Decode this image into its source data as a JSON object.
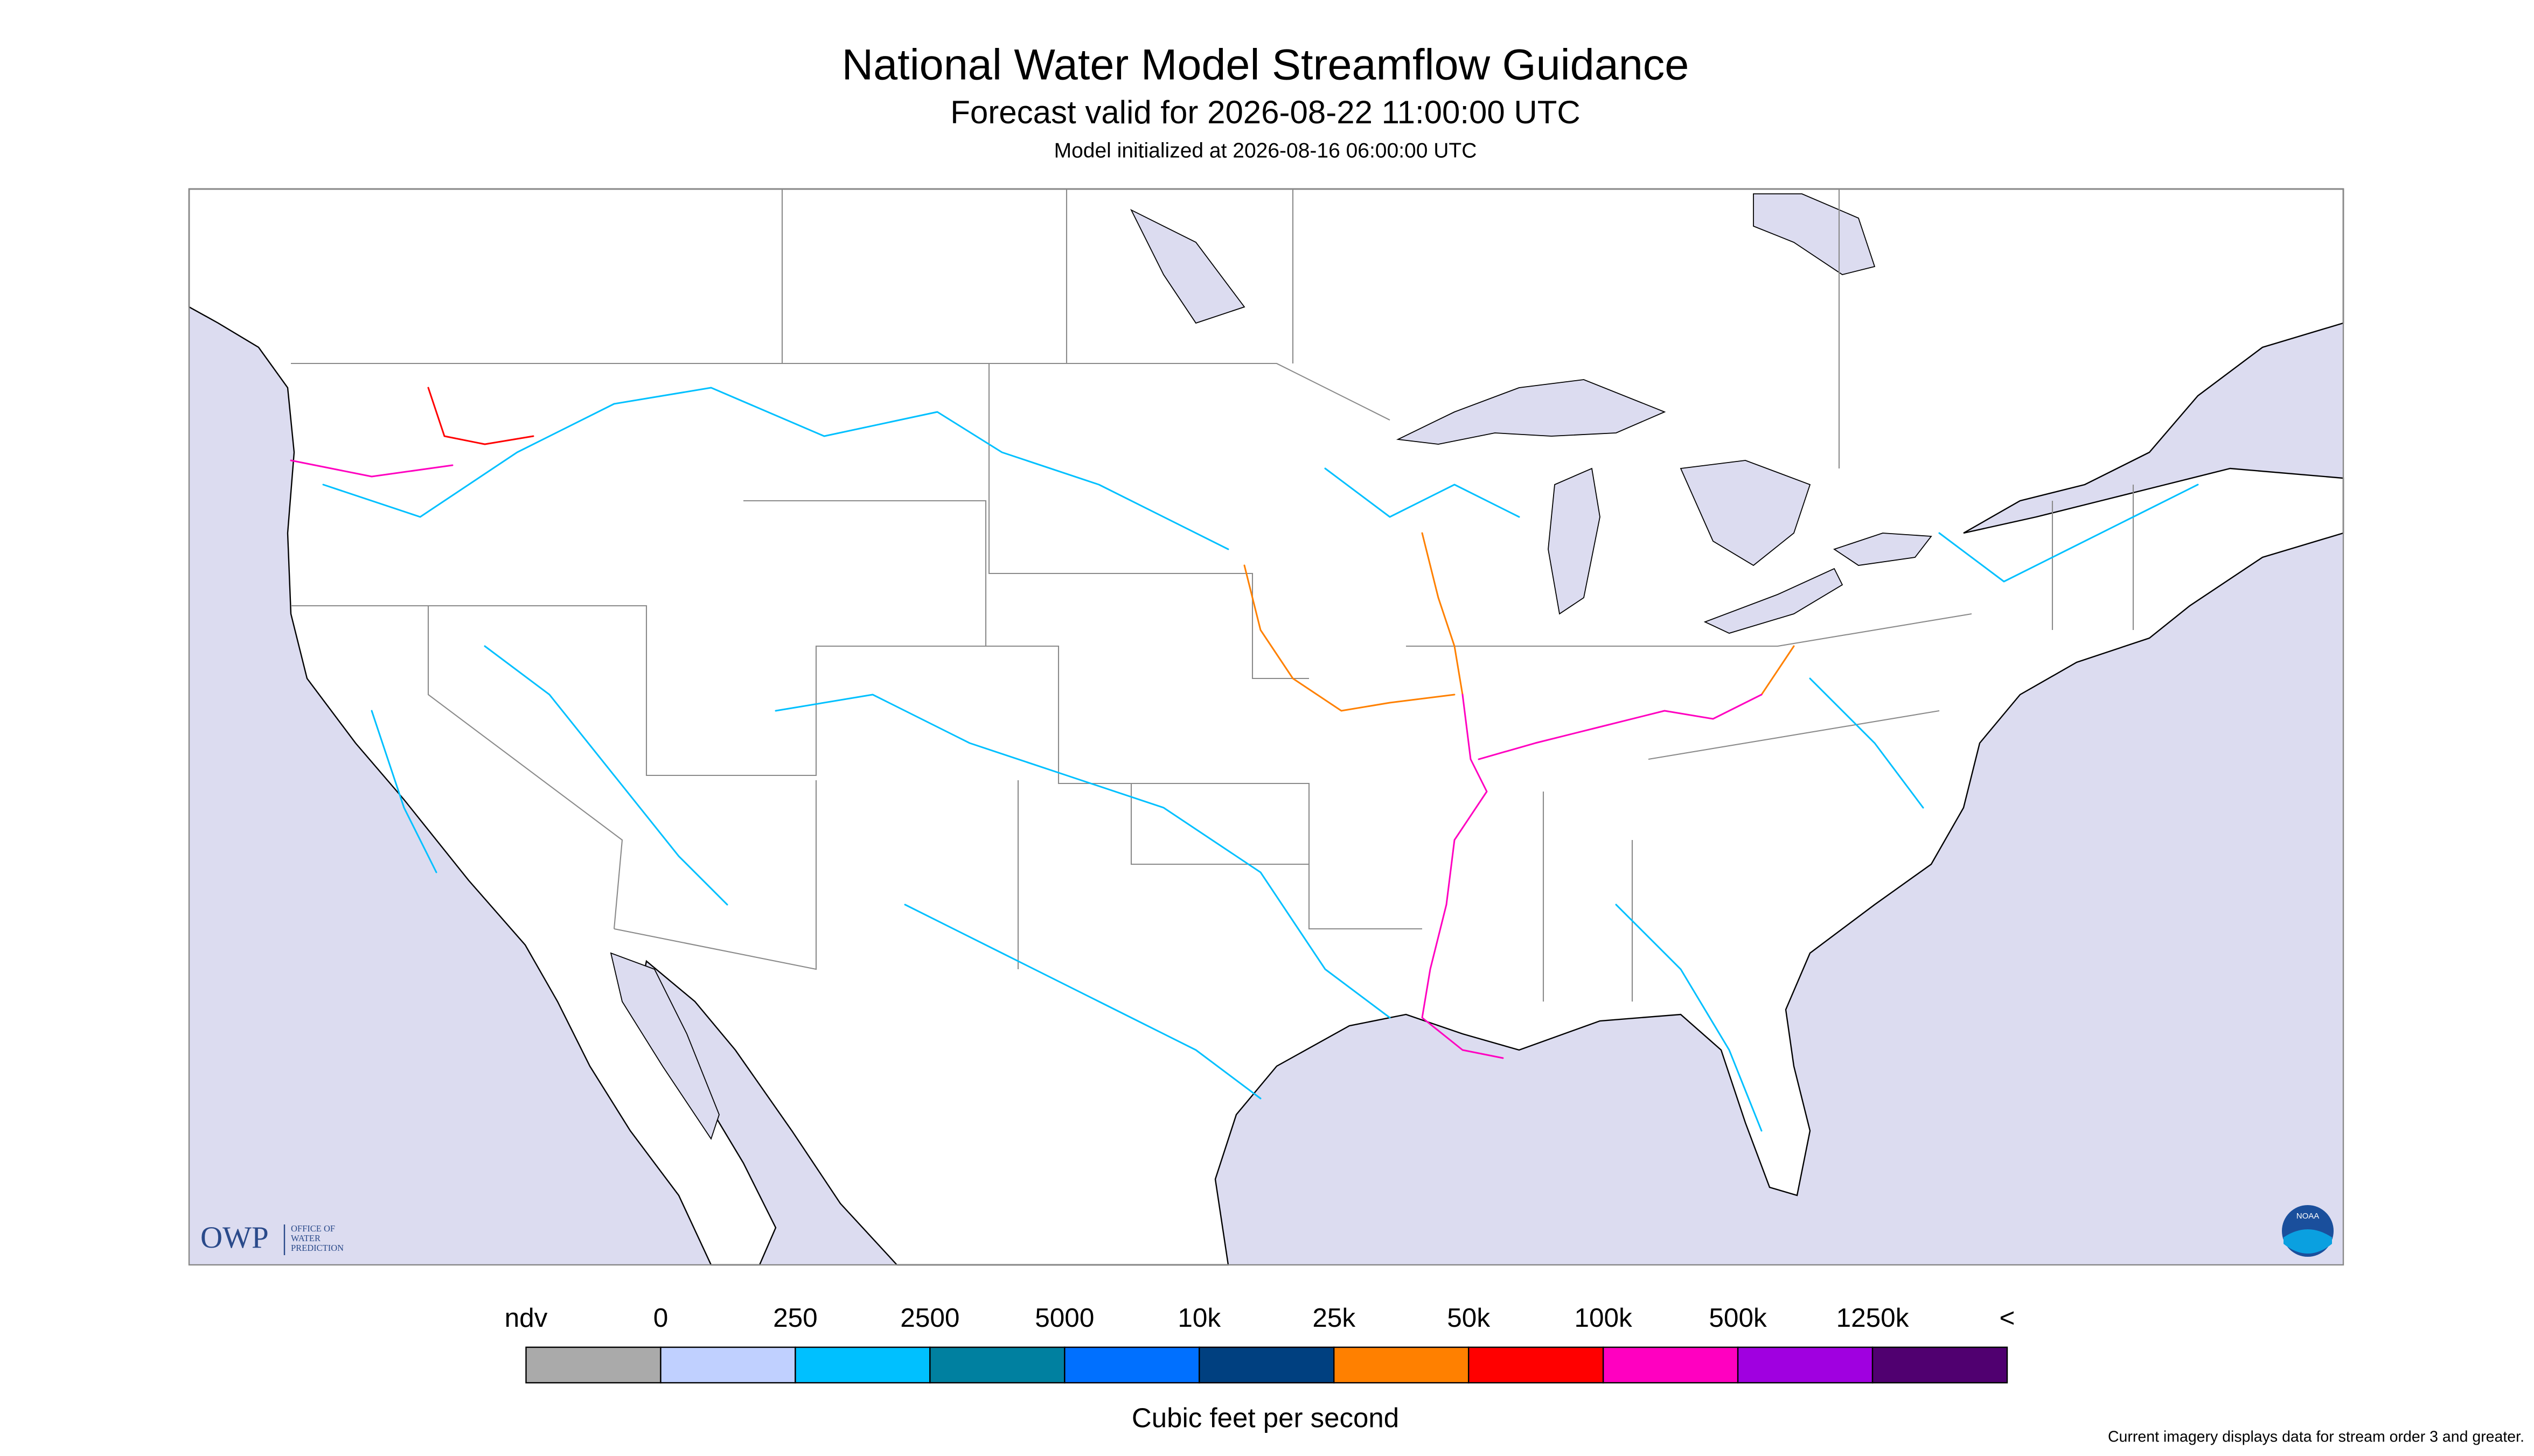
{
  "header": {
    "title": "National Water Model Streamflow Guidance",
    "subtitle": "Forecast valid for 2026-08-22 11:00:00 UTC",
    "init": "Model initialized at 2026-08-16 06:00:00 UTC"
  },
  "logo": {
    "short": "OWP",
    "long_1": "OFFICE OF",
    "long_2": "WATER",
    "long_3": "PREDICTION",
    "badge": "NOAA"
  },
  "legend": {
    "labels": [
      "ndv",
      "0",
      "250",
      "2500",
      "5000",
      "10k",
      "25k",
      "50k",
      "100k",
      "500k",
      "1250k",
      "<"
    ],
    "colors": [
      "#aaaaaa",
      "#c0d0ff",
      "#00c0ff",
      "#0080a0",
      "#0070ff",
      "#004080",
      "#ff8000",
      "#ff0000",
      "#ff00c0",
      "#a000e0",
      "#500070"
    ],
    "unit": "Cubic feet per second"
  },
  "footnote": "Current imagery displays data for stream order 3 and greater."
}
